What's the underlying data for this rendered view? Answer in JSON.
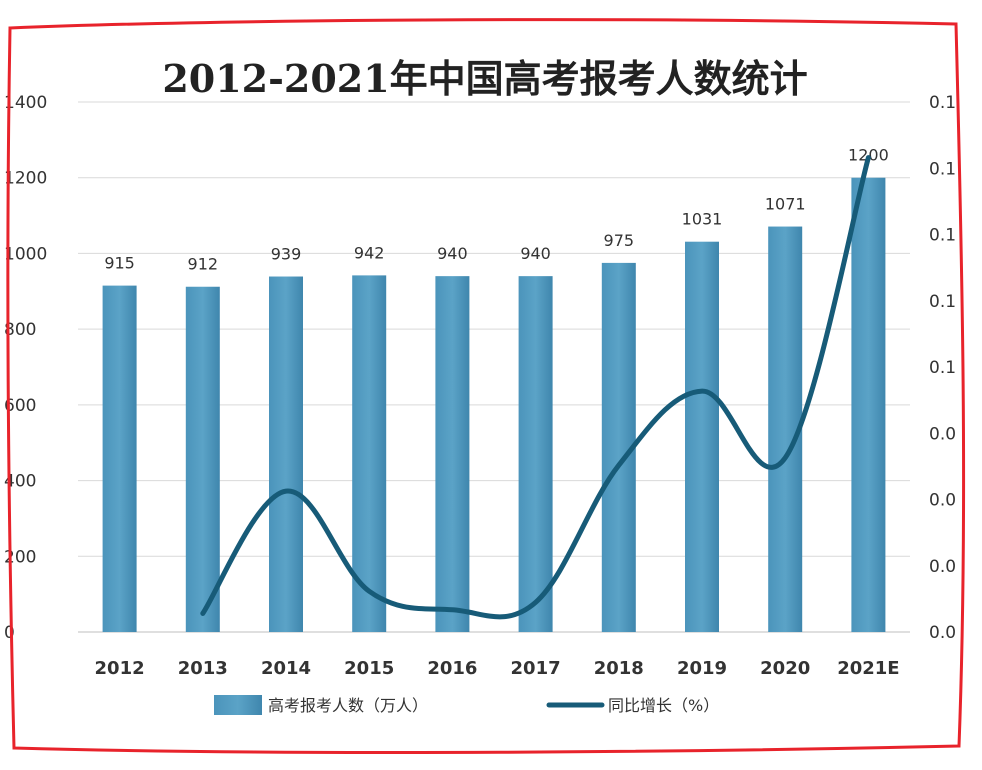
{
  "chart_data": {
    "type": "bar",
    "title": "2012-2021年中国高考报考人数统计",
    "categories": [
      "2012",
      "2013",
      "2014",
      "2015",
      "2016",
      "2017",
      "2018",
      "2019",
      "2020",
      "2021E"
    ],
    "series": [
      {
        "name": "高考报考人数（万人）",
        "type": "bar",
        "axis": "left",
        "color": "#5ba3c7",
        "values": [
          915,
          912,
          939,
          942,
          940,
          940,
          975,
          1031,
          1071,
          1200
        ]
      },
      {
        "name": "同比增长（%）",
        "type": "line",
        "axis": "right",
        "color": "#175b78",
        "values": [
          null,
          -0.003,
          0.03,
          0.003,
          -0.002,
          0.0,
          0.037,
          0.057,
          0.039,
          0.12
        ]
      }
    ],
    "y_left": {
      "ylim": [
        0,
        1400
      ],
      "ticks": [
        "0",
        "200",
        "400",
        "600",
        "800",
        "1000",
        "1200",
        "1400"
      ]
    },
    "y_right": {
      "ticks": [
        "0.0",
        "0.0",
        "0.0",
        "0.0",
        "0.1",
        "0.1",
        "0.1",
        "0.1",
        "0.1"
      ]
    },
    "grid": true,
    "legend": "bottom"
  },
  "colors": {
    "border": "#e8232b",
    "grid": "#d9d9d9"
  }
}
